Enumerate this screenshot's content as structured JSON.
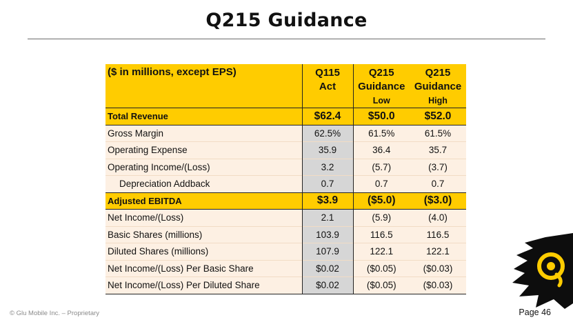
{
  "title": "Q215 Guidance",
  "table": {
    "header": {
      "label": "($ in millions, except EPS)",
      "col1_line1": "Q115",
      "col1_line2": "Act",
      "col2_line1": "Q215",
      "col2_line2": "Guidance",
      "col2_line3": "Low",
      "col3_line1": "Q215",
      "col3_line2": "Guidance",
      "col3_line3": "High"
    },
    "rows": [
      {
        "label": "Total Revenue",
        "act": "$62.4",
        "low": "$50.0",
        "high": "$52.0"
      },
      {
        "label": "Gross Margin",
        "act": "62.5%",
        "low": "61.5%",
        "high": "61.5%"
      },
      {
        "label": "Operating Expense",
        "act": "35.9",
        "low": "36.4",
        "high": "35.7"
      },
      {
        "label": "Operating Income/(Loss)",
        "act": "3.2",
        "low": "(5.7)",
        "high": "(3.7)"
      },
      {
        "label": "Depreciation Addback",
        "act": "0.7",
        "low": "0.7",
        "high": "0.7"
      },
      {
        "label": "Adjusted EBITDA",
        "act": "$3.9",
        "low": "($5.0)",
        "high": "($3.0)"
      },
      {
        "label": "Net Income/(Loss)",
        "act": "2.1",
        "low": "(5.9)",
        "high": "(4.0)"
      },
      {
        "label": "Basic Shares (millions)",
        "act": "103.9",
        "low": "116.5",
        "high": "116.5"
      },
      {
        "label": "Diluted Shares (millions)",
        "act": "107.9",
        "low": "122.1",
        "high": "122.1"
      },
      {
        "label": "Net Income/(Loss) Per Basic Share",
        "act": "$0.02",
        "low": "($0.05)",
        "high": "($0.03)"
      },
      {
        "label": "Net Income/(Loss) Per Diluted Share",
        "act": "$0.02",
        "low": "($0.05)",
        "high": "($0.03)"
      }
    ]
  },
  "footer": {
    "left": "© Glu Mobile Inc. – Proprietary",
    "right": "Page 46"
  },
  "colors": {
    "highlight": "#ffcc00",
    "row_bg": "#fdf0e3",
    "act_col_bg": "#d6d6d6"
  },
  "logo_icon": "glu-logo-icon"
}
